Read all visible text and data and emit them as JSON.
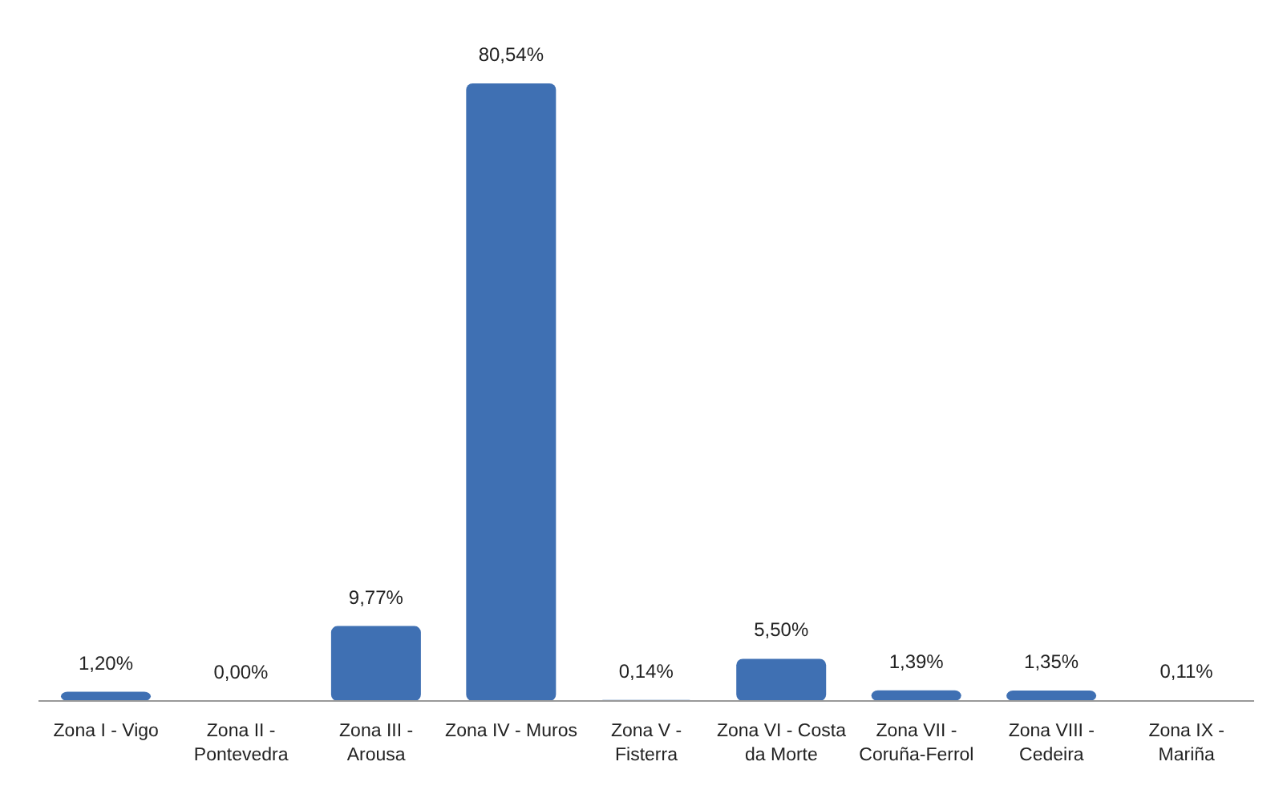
{
  "chart_data": {
    "type": "bar",
    "categories": [
      "Zona I - Vigo",
      "Zona II - Pontevedra",
      "Zona III - Arousa",
      "Zona IV - Muros",
      "Zona V - Fisterra",
      "Zona VI - Costa da Morte",
      "Zona VII - Coruña-Ferrol",
      "Zona VIII - Cedeira",
      "Zona IX - Mariña"
    ],
    "values": [
      1.2,
      0.0,
      9.77,
      80.54,
      0.14,
      5.5,
      1.39,
      1.35,
      0.11
    ],
    "value_labels": [
      "1,20%",
      "0,00%",
      "9,77%",
      "80,54%",
      "0,14%",
      "5,50%",
      "1,39%",
      "1,35%",
      "0,11%"
    ],
    "color": "#3f70b3",
    "grid": false,
    "tick_labels": "x"
  }
}
